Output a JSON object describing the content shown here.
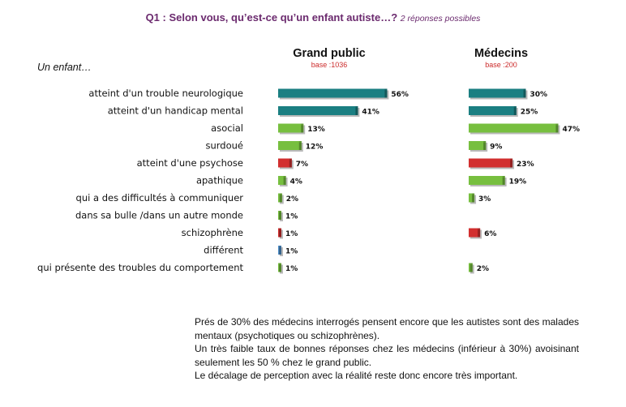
{
  "title": "Q1 : Selon vous, qu’est-ce qu’un enfant autiste…?",
  "title_note": "2 réponses possibles",
  "lead": "Un enfant…",
  "colors": {
    "teal": "#1b7f82",
    "green": "#77bf3f",
    "red": "#d22f2f",
    "blue": "#4f8fc9"
  },
  "chart_data": {
    "type": "bar",
    "orientation": "horizontal",
    "title": "Q1 : Selon vous, qu’est-ce qu’un enfant autiste…?",
    "categories": [
      "atteint d'un trouble neurologique",
      "atteint d'un handicap mental",
      "asocial",
      "surdoué",
      "atteint d'une psychose",
      "apathique",
      "qui a des difficultés à communiquer",
      "dans sa bulle /dans un autre monde",
      "schizophrène",
      "différent",
      "qui présente des troubles du comportement"
    ],
    "category_colors": [
      "teal",
      "teal",
      "green",
      "green",
      "red",
      "green",
      "green",
      "green",
      "red",
      "blue",
      "green"
    ],
    "series": [
      {
        "name": "Grand public",
        "base": "base :1036",
        "values": [
          56,
          41,
          13,
          12,
          7,
          4,
          2,
          1,
          1,
          1,
          1
        ],
        "labels": [
          "56%",
          "41%",
          "13%",
          "12%",
          "7%",
          "4%",
          "2%",
          "1%",
          "1%",
          "1%",
          "1%"
        ]
      },
      {
        "name": "Médecins",
        "base": "base :200",
        "values": [
          30,
          25,
          47,
          9,
          23,
          19,
          3,
          null,
          6,
          null,
          2
        ],
        "labels": [
          "30%",
          "25%",
          "47%",
          "9%",
          "23%",
          "19%",
          "3%",
          "",
          "6%",
          "",
          "2%"
        ]
      }
    ]
  },
  "footer": [
    "Prés de 30% des médecins interrogés pensent encore que les autistes sont des malades mentaux (psychotiques ou schizophrènes).",
    "Un très faible taux de bonnes réponses chez les médecins (inférieur à 30%) avoisinant seulement les 50 % chez le grand public.",
    "Le décalage de perception avec la réalité reste donc encore très important."
  ]
}
